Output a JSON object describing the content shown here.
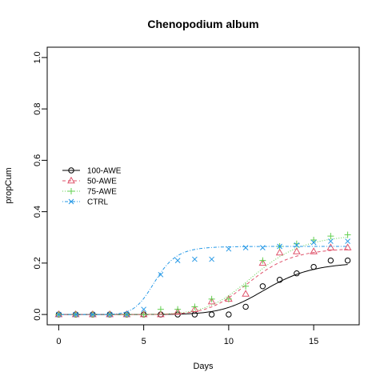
{
  "chart_data": {
    "type": "scatter",
    "title": "Chenopodium album",
    "xlabel": "Days",
    "ylabel": "propCum",
    "xlim": [
      0,
      17
    ],
    "ylim": [
      0,
      1
    ],
    "x_ticks": [
      0,
      5,
      10,
      15
    ],
    "y_ticks": [
      0.0,
      0.2,
      0.4,
      0.6,
      0.8,
      1.0
    ],
    "x_tick_labels": [
      "0",
      "5",
      "10",
      "15"
    ],
    "y_tick_labels": [
      "0.0",
      "0.2",
      "0.4",
      "0.6",
      "0.8",
      "1.0"
    ],
    "grid": false,
    "legend_position": "left",
    "series": [
      {
        "name": "100-AWE",
        "color": "#000000",
        "marker": "circle",
        "line_style": "solid",
        "x": [
          0,
          1,
          2,
          3,
          4,
          5,
          6,
          7,
          8,
          9,
          10,
          11,
          12,
          13,
          14,
          15,
          16,
          17
        ],
        "y": [
          0,
          0,
          0,
          0,
          0,
          0,
          0,
          0,
          0,
          0,
          0,
          0.03,
          0.11,
          0.135,
          0.16,
          0.185,
          0.21,
          0.21
        ],
        "fit": {
          "d": 0.205,
          "e": 12.3,
          "b": 9
        }
      },
      {
        "name": "50-AWE",
        "color": "#DF536B",
        "marker": "triangle",
        "line_style": "dashed",
        "x": [
          0,
          1,
          2,
          3,
          4,
          5,
          6,
          7,
          8,
          9,
          10,
          11,
          12,
          13,
          14,
          15,
          16,
          17
        ],
        "y": [
          0,
          0,
          0,
          0,
          0,
          0,
          0,
          0.01,
          0.02,
          0.05,
          0.06,
          0.08,
          0.2,
          0.24,
          0.245,
          0.245,
          0.26,
          0.26
        ],
        "fit": {
          "d": 0.26,
          "e": 11.3,
          "b": 9
        }
      },
      {
        "name": "75-AWE",
        "color": "#61D04F",
        "marker": "plus",
        "line_style": "dotted",
        "x": [
          0,
          1,
          2,
          3,
          4,
          5,
          6,
          7,
          8,
          9,
          10,
          11,
          12,
          13,
          14,
          15,
          16,
          17
        ],
        "y": [
          0,
          0,
          0,
          0,
          0,
          0,
          0.02,
          0.02,
          0.03,
          0.06,
          0.06,
          0.11,
          0.21,
          0.265,
          0.275,
          0.29,
          0.305,
          0.31
        ],
        "fit": {
          "d": 0.315,
          "e": 11.6,
          "b": 8
        }
      },
      {
        "name": "CTRL",
        "color": "#2297E6",
        "marker": "cross",
        "line_style": "dotdash",
        "x": [
          0,
          1,
          2,
          3,
          4,
          5,
          6,
          7,
          8,
          9,
          10,
          11,
          12,
          13,
          14,
          15,
          16,
          17
        ],
        "y": [
          0,
          0,
          0,
          0,
          0,
          0.02,
          0.155,
          0.21,
          0.215,
          0.215,
          0.255,
          0.26,
          0.26,
          0.265,
          0.27,
          0.28,
          0.285,
          0.285
        ],
        "fit": {
          "d": 0.265,
          "e": 5.7,
          "b": 9
        }
      }
    ]
  }
}
